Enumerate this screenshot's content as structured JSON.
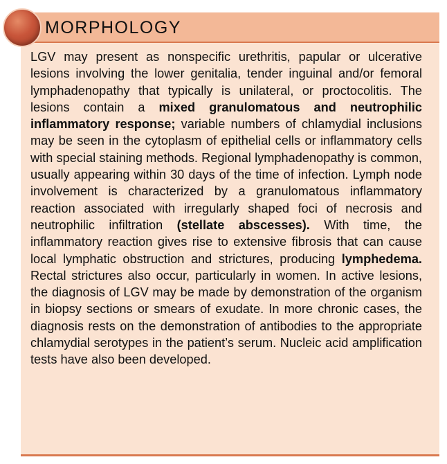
{
  "section": {
    "heading": "MORPHOLOGY",
    "paragraph": [
      {
        "text": "LGV may present as nonspecific urethritis, papular or ulcer­ative lesions involving the lower genitalia, tender inguinal and/or femoral lymphadenopathy that typically is unilateral, or proctocolitis. The lesions contain a ",
        "bold": false
      },
      {
        "text": "mixed granuloma­tous and neutrophilic inflammatory response;",
        "bold": true
      },
      {
        "text": " vari­able numbers of chlamydial inclusions may be seen in the cytoplasm of epithelial cells or inflammatory cells with special staining methods. Regional lymphadenopathy is common, usually appearing within 30 days of the time of infection. Lymph node involvement is characterized by a granuloma­tous inflammatory reaction associated with irregularly shaped foci of necrosis and neutrophilic infiltration ",
        "bold": false
      },
      {
        "text": "(stellate abscesses).",
        "bold": true
      },
      {
        "text": " With time, the inflammatory reaction gives rise to extensive fibrosis that can cause local lymphatic obstruc­tion and strictures, producing ",
        "bold": false
      },
      {
        "text": "lymphedema.",
        "bold": true
      },
      {
        "text": " Rectal stric­tures also occur, particularly in women. In active lesions, the diagnosis of LGV may be made by demonstration of the organism in biopsy sections or smears of exudate. In more chronic cases, the diagnosis rests on the demonstration of antibodies to the appropriate chlamydial serotypes in the patient’s serum. Nucleic acid amplification tests have also been developed.",
        "bold": false
      }
    ]
  },
  "colors": {
    "box_background": "#fbe3d2",
    "header_band": "#f3b897",
    "rule": "#d9794f",
    "badge": "#c8553a"
  },
  "icons": {
    "badge": "red-circle-badge-icon"
  }
}
